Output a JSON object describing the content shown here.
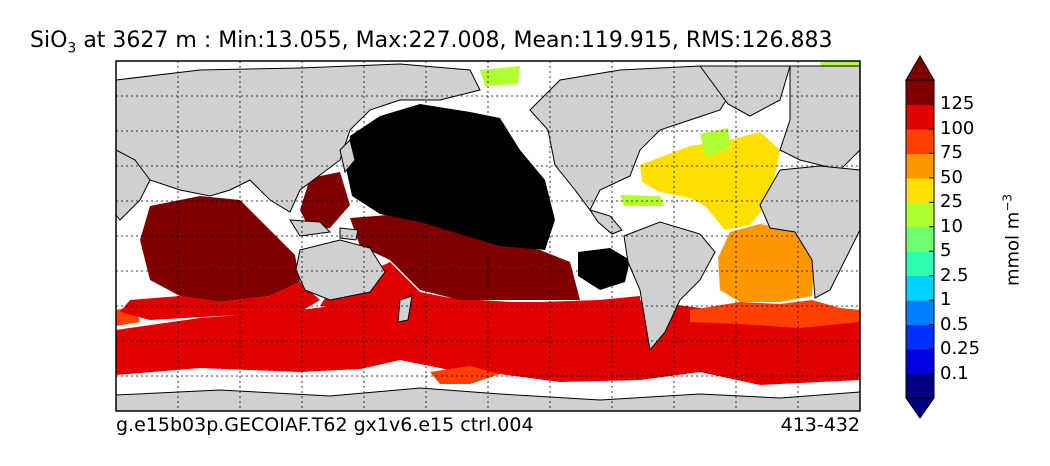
{
  "title": {
    "variable": "SiO",
    "variable_sub": "3",
    "rest": " at 3627 m : Min:13.055, Max:227.008, Mean:119.915, RMS:126.883"
  },
  "footer": {
    "case": "g.e15b03p.GECOIAF.T62 gx1v6.e15 ctrl.004",
    "years": "413-432"
  },
  "colorbar": {
    "units": "mmol m",
    "units_sup": "−3",
    "levels": [
      "0.1",
      "0.25",
      "0.5",
      "1",
      "2.5",
      "5",
      "10",
      "25",
      "50",
      "75",
      "100",
      "125"
    ],
    "colors": [
      "#000080",
      "#0000e0",
      "#0030ff",
      "#0080ff",
      "#00d0ff",
      "#30ffb0",
      "#70ff70",
      "#b0ff30",
      "#ffe000",
      "#ff9800",
      "#ff4000",
      "#e00000",
      "#800000"
    ],
    "colors_note_land": "#d0d0d0",
    "colors_note_black": "#000000"
  }
}
